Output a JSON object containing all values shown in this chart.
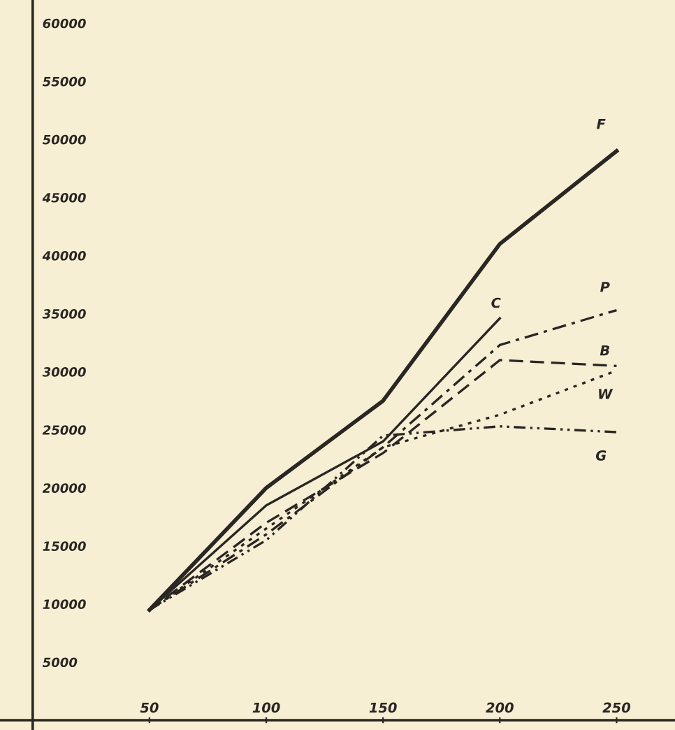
{
  "chart_data": {
    "type": "line",
    "x": [
      50,
      100,
      150,
      200,
      250
    ],
    "series": [
      {
        "name": "F",
        "color": "#2a2622",
        "line_style": "solid",
        "values": [
          9500,
          20000,
          27500,
          41000,
          49000
        ]
      },
      {
        "name": "C",
        "color": "#2a2622",
        "line_style": "solid",
        "values": [
          9500,
          18500,
          24000,
          34600,
          null
        ]
      },
      {
        "name": "P",
        "color": "#2a2622",
        "line_style": "dashdot",
        "values": [
          9500,
          16000,
          23500,
          32300,
          35300
        ]
      },
      {
        "name": "B",
        "color": "#2a2622",
        "line_style": "dashed",
        "values": [
          9500,
          17000,
          23000,
          31000,
          30500
        ]
      },
      {
        "name": "W",
        "color": "#2a2622",
        "line_style": "dotted",
        "values": [
          9500,
          16500,
          23500,
          26300,
          30100
        ]
      },
      {
        "name": "G",
        "color": "#2a2622",
        "line_style": "dashdotdot",
        "values": [
          9500,
          15500,
          24500,
          25300,
          24800
        ]
      }
    ],
    "xlim": [
      -14,
      275
    ],
    "ylim": [
      -840,
      62000
    ],
    "xticks": [
      50,
      100,
      150,
      200,
      250
    ],
    "yticks": [
      5000,
      10000,
      15000,
      20000,
      25000,
      30000,
      35000,
      40000,
      45000,
      50000,
      55000,
      60000
    ],
    "grid": false,
    "legend": false,
    "marker": "none"
  }
}
